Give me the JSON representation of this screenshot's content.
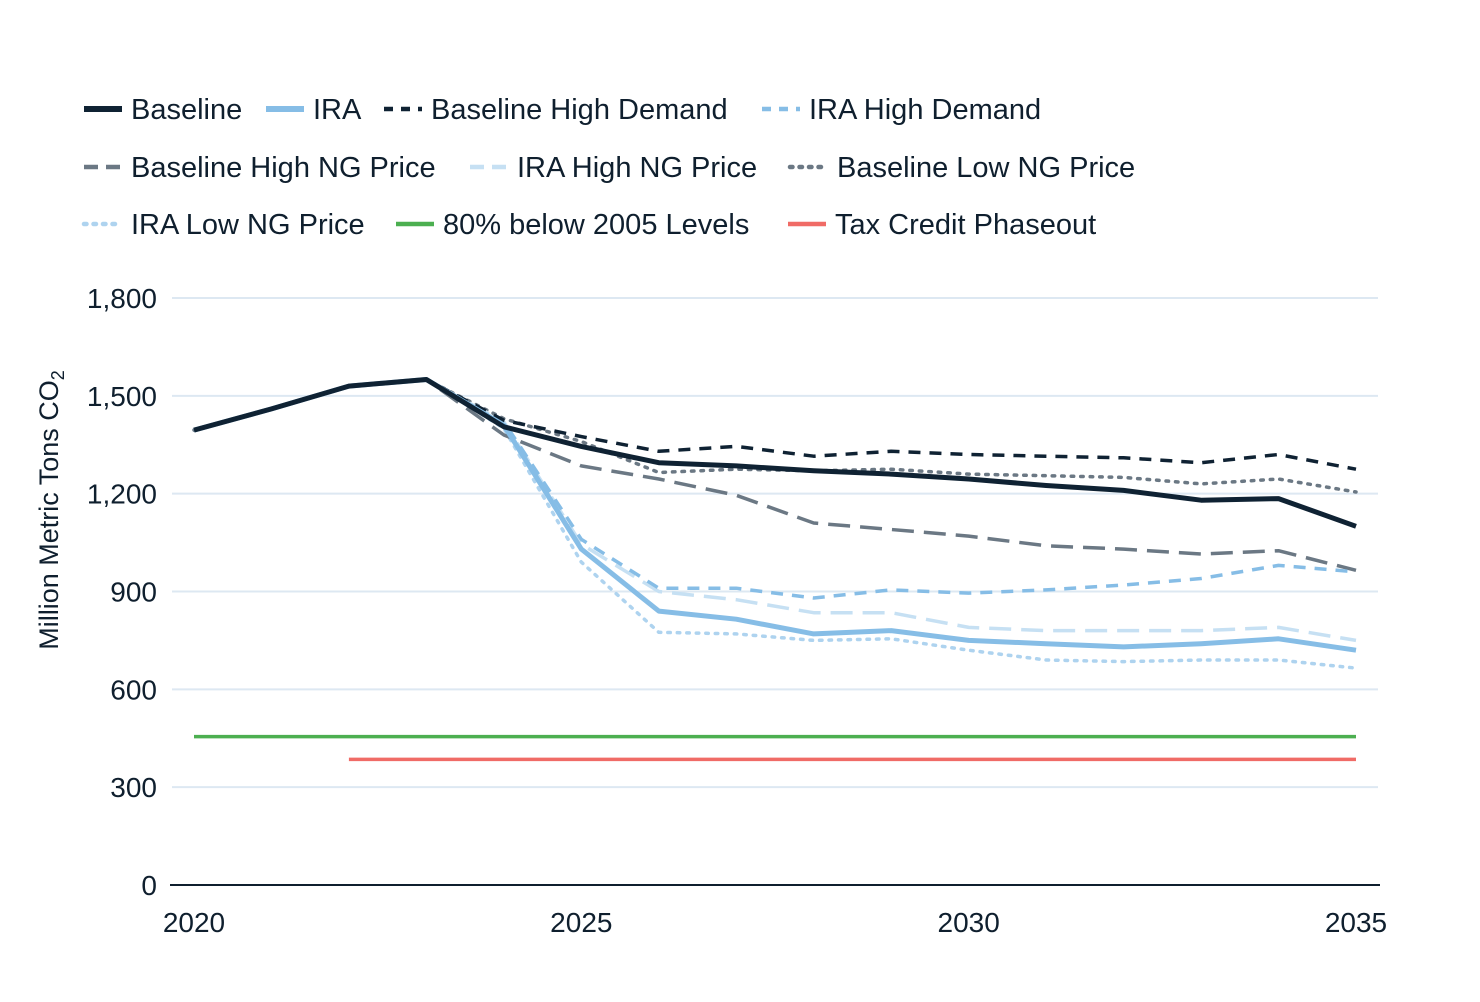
{
  "chart_data": {
    "type": "line",
    "title": "",
    "xlabel": "",
    "ylabel": "Million Metric Tons CO",
    "ylabel_subscript": "2",
    "xlim": [
      2020,
      2035
    ],
    "ylim": [
      0,
      1800
    ],
    "x_ticks": [
      2020,
      2025,
      2030,
      2035
    ],
    "x_tick_labels": [
      "2020",
      "2025",
      "2030",
      "2035"
    ],
    "y_ticks": [
      0,
      300,
      600,
      900,
      1200,
      1500,
      1800
    ],
    "y_tick_labels": [
      "0",
      "300",
      "600",
      "900",
      "1,200",
      "1,500",
      "1,800"
    ],
    "grid": "horizontal",
    "legend_position": "top",
    "x": [
      2020,
      2021,
      2022,
      2023,
      2024,
      2025,
      2026,
      2027,
      2028,
      2029,
      2030,
      2031,
      2032,
      2033,
      2034,
      2035
    ],
    "series": [
      {
        "name": "Baseline",
        "color": "#0f2233",
        "style": "solid",
        "width": 5,
        "values": [
          1395,
          1460,
          1530,
          1550,
          1405,
          1345,
          1295,
          1285,
          1270,
          1260,
          1245,
          1225,
          1210,
          1180,
          1185,
          1100
        ]
      },
      {
        "name": "IRA",
        "color": "#86bde6",
        "style": "solid",
        "width": 5,
        "values": [
          1395,
          1460,
          1530,
          1550,
          1410,
          1030,
          840,
          815,
          770,
          780,
          750,
          740,
          730,
          740,
          755,
          720
        ]
      },
      {
        "name": "Baseline High Demand",
        "color": "#0f2233",
        "style": "dashed",
        "width": 3.5,
        "values": [
          1395,
          1460,
          1530,
          1550,
          1425,
          1375,
          1330,
          1345,
          1315,
          1330,
          1320,
          1315,
          1310,
          1295,
          1320,
          1275
        ]
      },
      {
        "name": "IRA High Demand",
        "color": "#86bde6",
        "style": "dashed",
        "width": 3.5,
        "values": [
          1395,
          1460,
          1530,
          1550,
          1420,
          1060,
          910,
          910,
          880,
          905,
          895,
          905,
          920,
          940,
          980,
          960
        ]
      },
      {
        "name": "Baseline High NG Price",
        "color": "#6b7884",
        "style": "dashed-long",
        "width": 3.5,
        "values": [
          1395,
          1460,
          1530,
          1550,
          1380,
          1285,
          1245,
          1195,
          1110,
          1090,
          1070,
          1040,
          1030,
          1015,
          1025,
          965
        ]
      },
      {
        "name": "IRA High NG Price",
        "color": "#c6e0f3",
        "style": "dashed-long",
        "width": 3.5,
        "values": [
          1395,
          1460,
          1530,
          1550,
          1420,
          1045,
          900,
          875,
          835,
          835,
          790,
          780,
          780,
          780,
          790,
          750
        ]
      },
      {
        "name": "Baseline Low NG Price",
        "color": "#6b7884",
        "style": "dotted",
        "width": 3.5,
        "values": [
          1395,
          1460,
          1530,
          1550,
          1430,
          1360,
          1265,
          1275,
          1270,
          1275,
          1260,
          1255,
          1250,
          1230,
          1245,
          1205
        ]
      },
      {
        "name": "IRA Low NG Price",
        "color": "#aed3ef",
        "style": "dotted",
        "width": 3.5,
        "values": [
          1395,
          1460,
          1530,
          1550,
          1400,
          990,
          775,
          770,
          750,
          755,
          720,
          690,
          685,
          690,
          690,
          665
        ]
      },
      {
        "name": "80% below 2005 Levels",
        "color": "#4caf50",
        "style": "solid",
        "width": 3.5,
        "x_start": 2020,
        "x_end": 2035,
        "value": 455
      },
      {
        "name": "Tax Credit Phaseout",
        "color": "#f06b66",
        "style": "solid",
        "width": 3.5,
        "x_start": 2022,
        "x_end": 2035,
        "value": 385
      }
    ]
  }
}
